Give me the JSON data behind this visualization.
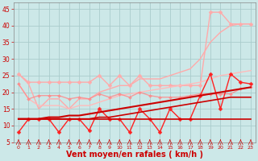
{
  "background_color": "#cce8e8",
  "grid_color": "#aacccc",
  "xlabel": "Vent moyen/en rafales ( km/h )",
  "xlabel_color": "#cc0000",
  "xlabel_fontsize": 7,
  "tick_color": "#cc0000",
  "ylim": [
    5,
    47
  ],
  "xlim": [
    -0.5,
    23.5
  ],
  "yticks": [
    5,
    10,
    15,
    20,
    25,
    30,
    35,
    40,
    45
  ],
  "xticks": [
    0,
    1,
    2,
    3,
    4,
    5,
    6,
    7,
    8,
    9,
    10,
    11,
    12,
    13,
    14,
    15,
    16,
    17,
    18,
    19,
    20,
    21,
    22,
    23
  ],
  "series": [
    {
      "color": "#ffaaaa",
      "alpha": 1.0,
      "linewidth": 1.0,
      "marker": null,
      "y": [
        25.5,
        22.5,
        15.0,
        18.0,
        18.0,
        15.0,
        18.0,
        18.0,
        20.0,
        21.0,
        22.0,
        22.0,
        24.0,
        24.0,
        24.0,
        25.0,
        26.0,
        27.0,
        30.0,
        35.0,
        38.0,
        40.0,
        40.5,
        40.5
      ]
    },
    {
      "color": "#ffaaaa",
      "alpha": 1.0,
      "linewidth": 1.0,
      "marker": "D",
      "markersize": 2.5,
      "y": [
        25.5,
        23.0,
        23.0,
        23.0,
        23.0,
        23.0,
        23.0,
        23.0,
        25.0,
        22.0,
        25.0,
        22.0,
        25.0,
        22.0,
        22.0,
        22.0,
        22.0,
        22.0,
        22.0,
        44.0,
        44.0,
        40.5,
        40.5,
        40.5
      ]
    },
    {
      "color": "#ffbbbb",
      "alpha": 1.0,
      "linewidth": 1.0,
      "marker": null,
      "y": [
        22.5,
        18.0,
        16.0,
        16.0,
        16.0,
        15.0,
        16.0,
        16.0,
        17.0,
        18.0,
        19.0,
        19.5,
        20.0,
        20.5,
        21.0,
        21.5,
        22.0,
        22.5,
        23.0,
        24.0,
        25.0,
        25.5,
        26.0,
        26.5
      ]
    },
    {
      "color": "#ff8888",
      "alpha": 0.8,
      "linewidth": 1.0,
      "marker": "D",
      "markersize": 2.0,
      "y": [
        22.5,
        18.0,
        19.0,
        19.0,
        19.0,
        18.0,
        18.5,
        18.0,
        19.5,
        18.5,
        19.5,
        18.5,
        20.0,
        19.0,
        18.5,
        18.5,
        18.5,
        19.0,
        19.5,
        19.5,
        19.5,
        19.5,
        21.0,
        21.5
      ]
    },
    {
      "color": "#ff2222",
      "alpha": 1.0,
      "linewidth": 1.0,
      "marker": "D",
      "markersize": 2.5,
      "y": [
        8.0,
        12.0,
        12.0,
        12.0,
        8.0,
        12.0,
        12.0,
        8.5,
        15.0,
        12.0,
        12.0,
        8.0,
        15.0,
        12.0,
        8.0,
        15.0,
        12.0,
        12.0,
        19.0,
        25.5,
        15.0,
        25.5,
        23.0,
        22.5
      ]
    },
    {
      "color": "#cc0000",
      "alpha": 1.0,
      "linewidth": 1.2,
      "marker": null,
      "y": [
        12.0,
        12.0,
        12.0,
        12.0,
        12.0,
        12.0,
        12.0,
        12.0,
        12.0,
        12.0,
        12.0,
        12.0,
        12.0,
        12.0,
        12.0,
        12.0,
        12.0,
        12.0,
        12.0,
        12.0,
        12.0,
        12.0,
        12.0,
        12.0
      ]
    },
    {
      "color": "#cc0000",
      "alpha": 1.0,
      "linewidth": 1.2,
      "marker": null,
      "y": [
        12.0,
        12.0,
        12.0,
        12.0,
        12.0,
        12.0,
        12.0,
        12.0,
        12.5,
        12.5,
        13.0,
        13.5,
        14.0,
        14.5,
        15.0,
        15.5,
        16.0,
        16.5,
        17.0,
        17.5,
        18.0,
        18.5,
        18.5,
        18.5
      ]
    },
    {
      "color": "#cc0000",
      "alpha": 1.0,
      "linewidth": 1.5,
      "marker": null,
      "y": [
        12.0,
        12.0,
        12.0,
        12.5,
        12.5,
        13.0,
        13.0,
        13.5,
        14.0,
        14.5,
        15.0,
        15.5,
        16.0,
        16.5,
        17.0,
        17.5,
        18.0,
        18.5,
        19.0,
        19.5,
        20.0,
        20.5,
        21.0,
        21.5
      ]
    }
  ],
  "wind_x": [
    0,
    1,
    2,
    3,
    4,
    5,
    6,
    7,
    8,
    9,
    10,
    11,
    12,
    13,
    14,
    15,
    16,
    17,
    18,
    19,
    20,
    21,
    22,
    23
  ]
}
